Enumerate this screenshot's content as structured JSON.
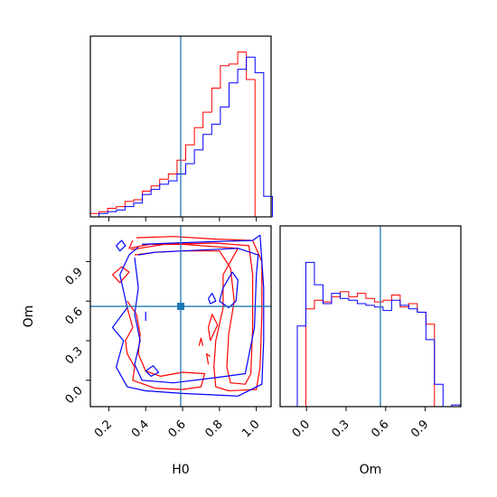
{
  "colors": {
    "series_red": "#ff0000",
    "series_blue": "#0000ff",
    "truth": "#1f77b4",
    "axes": "#000000"
  },
  "axis_labels": {
    "x_h0": "H0",
    "x_om": "Om",
    "y_om": "Om"
  },
  "chart_data": {
    "type": "corner",
    "title": "",
    "truth": {
      "H0": 0.59,
      "Om": 0.56
    },
    "panels": [
      {
        "id": "h0-hist",
        "type": "step-histogram",
        "variable": "H0",
        "xlim": [
          0.1,
          1.08
        ],
        "bin_edges": [
          0.1,
          0.147,
          0.194,
          0.241,
          0.288,
          0.335,
          0.382,
          0.429,
          0.476,
          0.523,
          0.57,
          0.617,
          0.664,
          0.711,
          0.758,
          0.805,
          0.852,
          0.899,
          0.946,
          0.993,
          1.04,
          1.087
        ],
        "series": [
          {
            "name": "",
            "color": "red",
            "values": [
              0.02,
              0.03,
              0.05,
              0.06,
              0.09,
              0.1,
              0.15,
              0.18,
              0.22,
              0.25,
              0.33,
              0.42,
              0.52,
              0.61,
              0.75,
              0.88,
              0.89,
              0.96,
              0.8,
              0.0,
              0.0
            ]
          },
          {
            "name": "",
            "color": "blue",
            "values": [
              0.0,
              0.02,
              0.03,
              0.04,
              0.06,
              0.08,
              0.13,
              0.16,
              0.19,
              0.21,
              0.25,
              0.31,
              0.39,
              0.48,
              0.54,
              0.64,
              0.78,
              0.86,
              0.93,
              0.84,
              0.12
            ]
          }
        ]
      },
      {
        "id": "om-hist",
        "type": "step-histogram",
        "variable": "Om",
        "xlim": [
          -0.2,
          1.17
        ],
        "x_ticks": [
          0.0,
          0.3,
          0.6,
          0.9
        ],
        "bin_edges": [
          -0.2,
          -0.135,
          -0.07,
          -0.005,
          0.06,
          0.125,
          0.19,
          0.255,
          0.32,
          0.385,
          0.45,
          0.515,
          0.58,
          0.645,
          0.71,
          0.775,
          0.84,
          0.905,
          0.97,
          1.035,
          1.1,
          1.165
        ],
        "series": [
          {
            "name": "",
            "color": "red",
            "values": [
              0.0,
              0.0,
              0.0,
              0.57,
              0.62,
              0.61,
              0.64,
              0.67,
              0.64,
              0.66,
              0.63,
              0.61,
              0.62,
              0.65,
              0.58,
              0.6,
              0.55,
              0.48,
              0.0,
              0.0,
              0.0
            ]
          },
          {
            "name": "",
            "color": "blue",
            "values": [
              0.0,
              0.0,
              0.47,
              0.84,
              0.71,
              0.6,
              0.66,
              0.63,
              0.62,
              0.6,
              0.59,
              0.58,
              0.56,
              0.62,
              0.59,
              0.57,
              0.55,
              0.39,
              0.13,
              0.0,
              0.01
            ]
          }
        ]
      },
      {
        "id": "h0-om-contour",
        "type": "contour",
        "x_variable": "H0",
        "y_variable": "Om",
        "xlim": [
          0.1,
          1.08
        ],
        "ylim": [
          -0.2,
          1.17
        ],
        "x_ticks": [
          0.2,
          0.4,
          0.6,
          0.8,
          1.0
        ],
        "y_ticks": [
          0.0,
          0.3,
          0.6,
          0.9
        ],
        "contours": [
          {
            "color": "red",
            "points": [
              [
                0.35,
                1.08
              ],
              [
                0.55,
                1.09
              ],
              [
                0.78,
                1.07
              ],
              [
                0.98,
                1.06
              ],
              [
                1.03,
                0.9
              ],
              [
                1.03,
                0.5
              ],
              [
                1.02,
                0.1
              ],
              [
                1.0,
                -0.07
              ],
              [
                0.85,
                -0.08
              ],
              [
                0.78,
                -0.05
              ],
              [
                0.77,
                0.1
              ],
              [
                0.78,
                0.3
              ],
              [
                0.82,
                0.55
              ],
              [
                0.82,
                0.8
              ],
              [
                0.9,
                1.0
              ],
              [
                0.6,
                1.03
              ],
              [
                0.42,
                1.03
              ],
              [
                0.31,
                1.0
              ],
              [
                0.33,
                1.06
              ]
            ]
          },
          {
            "color": "red",
            "points": [
              [
                0.32,
                0.99
              ],
              [
                0.5,
                1.03
              ],
              [
                0.78,
                1.04
              ],
              [
                0.96,
                1.02
              ],
              [
                0.98,
                0.8
              ],
              [
                0.98,
                0.4
              ],
              [
                0.97,
                0.05
              ],
              [
                0.94,
                -0.03
              ],
              [
                0.86,
                -0.02
              ],
              [
                0.84,
                0.1
              ],
              [
                0.85,
                0.35
              ],
              [
                0.88,
                0.6
              ],
              [
                0.86,
                0.85
              ],
              [
                0.8,
                0.98
              ],
              [
                0.6,
                0.98
              ],
              [
                0.45,
                0.97
              ],
              [
                0.34,
                0.95
              ]
            ]
          },
          {
            "color": "red",
            "points": [
              [
                0.3,
                0.55
              ],
              [
                0.33,
                0.4
              ],
              [
                0.29,
                0.3
              ],
              [
                0.3,
                0.2
              ],
              [
                0.34,
                0.1
              ],
              [
                0.33,
                0.0
              ],
              [
                0.45,
                -0.06
              ],
              [
                0.6,
                -0.07
              ],
              [
                0.7,
                -0.05
              ],
              [
                0.72,
                0.05
              ],
              [
                0.6,
                0.06
              ],
              [
                0.48,
                0.03
              ],
              [
                0.4,
                0.07
              ],
              [
                0.36,
                0.2
              ],
              [
                0.37,
                0.35
              ],
              [
                0.35,
                0.5
              ],
              [
                0.3,
                0.6
              ]
            ]
          },
          {
            "color": "red",
            "points": [
              [
                0.22,
                0.8
              ],
              [
                0.27,
                0.86
              ],
              [
                0.31,
                0.82
              ],
              [
                0.26,
                0.74
              ],
              [
                0.22,
                0.8
              ]
            ]
          },
          {
            "color": "red",
            "points": [
              [
                0.75,
                0.3
              ],
              [
                0.74,
                0.4
              ],
              [
                0.76,
                0.5
              ],
              [
                0.79,
                0.42
              ],
              [
                0.75,
                0.3
              ]
            ]
          },
          {
            "color": "red",
            "points": [
              [
                0.69,
                0.26
              ],
              [
                0.7,
                0.32
              ],
              [
                0.71,
                0.26
              ]
            ]
          },
          {
            "color": "red",
            "points": [
              [
                0.74,
                0.12
              ],
              [
                0.73,
                0.2
              ],
              [
                0.75,
                0.18
              ]
            ]
          },
          {
            "color": "blue",
            "points": [
              [
                0.38,
                1.03
              ],
              [
                0.55,
                1.04
              ],
              [
                0.75,
                1.05
              ],
              [
                0.98,
                1.06
              ],
              [
                1.02,
                1.1
              ],
              [
                1.04,
                0.7
              ],
              [
                1.04,
                0.3
              ],
              [
                1.03,
                -0.03
              ],
              [
                0.9,
                -0.12
              ],
              [
                0.6,
                -0.1
              ],
              [
                0.4,
                -0.08
              ],
              [
                0.3,
                -0.05
              ],
              [
                0.24,
                0.1
              ],
              [
                0.28,
                0.3
              ],
              [
                0.22,
                0.4
              ],
              [
                0.3,
                0.55
              ],
              [
                0.26,
                0.8
              ],
              [
                0.31,
                0.95
              ],
              [
                0.36,
                1.01
              ]
            ]
          },
          {
            "color": "blue",
            "points": [
              [
                0.34,
                0.93
              ],
              [
                0.36,
                0.7
              ],
              [
                0.34,
                0.5
              ],
              [
                0.37,
                0.3
              ],
              [
                0.34,
                0.12
              ],
              [
                0.38,
                0.0
              ],
              [
                0.55,
                -0.02
              ],
              [
                0.78,
                0.02
              ],
              [
                0.94,
                0.05
              ],
              [
                0.99,
                0.4
              ],
              [
                1.0,
                0.8
              ],
              [
                1.01,
                0.95
              ],
              [
                0.9,
                1.0
              ],
              [
                0.6,
                0.98
              ],
              [
                0.45,
                0.97
              ],
              [
                0.36,
                0.95
              ]
            ]
          },
          {
            "color": "blue",
            "points": [
              [
                0.82,
                0.7
              ],
              [
                0.87,
                0.82
              ],
              [
                0.9,
                0.76
              ],
              [
                0.89,
                0.6
              ],
              [
                0.85,
                0.55
              ],
              [
                0.8,
                0.6
              ],
              [
                0.82,
                0.7
              ]
            ]
          },
          {
            "color": "blue",
            "points": [
              [
                0.24,
                1.02
              ],
              [
                0.27,
                1.06
              ],
              [
                0.29,
                1.02
              ],
              [
                0.26,
                0.98
              ],
              [
                0.24,
                1.02
              ]
            ]
          },
          {
            "color": "blue",
            "points": [
              [
                0.4,
                0.07
              ],
              [
                0.44,
                0.11
              ],
              [
                0.47,
                0.06
              ],
              [
                0.43,
                0.03
              ],
              [
                0.4,
                0.07
              ]
            ]
          },
          {
            "color": "blue",
            "points": [
              [
                0.74,
                0.62
              ],
              [
                0.76,
                0.66
              ],
              [
                0.78,
                0.6
              ],
              [
                0.75,
                0.58
              ],
              [
                0.74,
                0.62
              ]
            ]
          },
          {
            "color": "blue",
            "points": [
              [
                0.4,
                0.45
              ],
              [
                0.4,
                0.52
              ]
            ]
          }
        ]
      }
    ]
  }
}
